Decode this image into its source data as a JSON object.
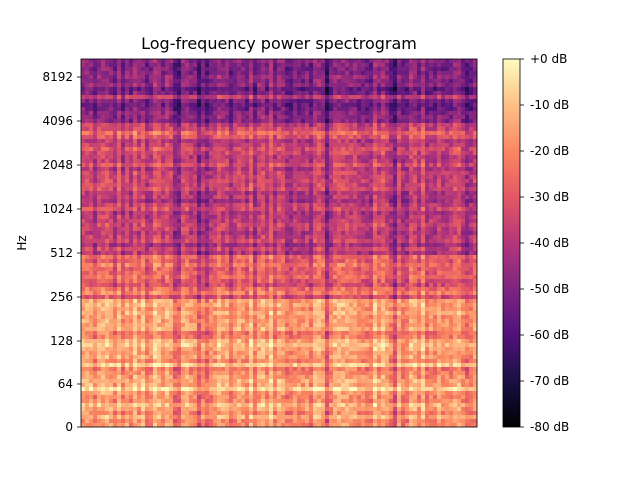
{
  "chart_data": {
    "type": "heatmap",
    "title": "Log-frequency power spectrogram",
    "ylabel": "Hz",
    "xlabel": "",
    "y_scale": "log2",
    "y_ticks": [
      "0",
      "64",
      "128",
      "256",
      "512",
      "1024",
      "2048",
      "4096",
      "8192"
    ],
    "y_tick_values": [
      0,
      64,
      128,
      256,
      512,
      1024,
      2048,
      4096,
      8192
    ],
    "colorbar": {
      "label_ticks": [
        "+0 dB",
        "-10 dB",
        "-20 dB",
        "-30 dB",
        "-40 dB",
        "-50 dB",
        "-60 dB",
        "-70 dB",
        "-80 dB"
      ],
      "values": [
        0,
        -10,
        -20,
        -30,
        -40,
        -50,
        -60,
        -70,
        -80
      ],
      "range": [
        -80,
        0
      ],
      "colormap": "magma"
    },
    "frequency_band_levels_db": {
      "below_64": -15,
      "64_to_256": -18,
      "256_to_512": -28,
      "512_to_2048": -38,
      "2048_to_4096": -35,
      "above_4096": -50
    }
  }
}
